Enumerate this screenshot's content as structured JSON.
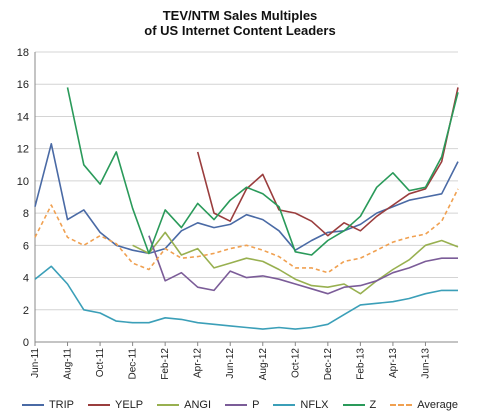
{
  "chart_data": {
    "type": "line",
    "title": "TEV/NTM Sales Multiples",
    "subtitle": "of US Internet Content Leaders",
    "ylim": [
      0,
      18
    ],
    "y_ticks": [
      "0",
      "2",
      "4",
      "6",
      "8",
      "10",
      "12",
      "14",
      "16",
      "18"
    ],
    "x_start": "Jun-11",
    "x_end": "Aug-13",
    "x_tick_labels": [
      "Jun-11",
      "Aug-11",
      "Oct-11",
      "Dec-11",
      "Feb-12",
      "Apr-12",
      "Jun-12",
      "Aug-12",
      "Oct-12",
      "Dec-12",
      "Feb-13",
      "Apr-13",
      "Jun-13"
    ],
    "grid": true,
    "legend_position": "bottom",
    "series": [
      {
        "name": "TRIP",
        "color": "#4a6aa5",
        "dash": false,
        "x": [
          "Jun-11",
          "Jul-11",
          "Aug-11",
          "Sep-11",
          "Oct-11",
          "Nov-11",
          "Dec-11",
          "Jan-12",
          "Feb-12",
          "Mar-12",
          "Apr-12",
          "May-12",
          "Jun-12",
          "Jul-12",
          "Aug-12",
          "Sep-12",
          "Oct-12",
          "Nov-12",
          "Dec-12",
          "Jan-13",
          "Feb-13",
          "Mar-13",
          "Apr-13",
          "May-13",
          "Jun-13",
          "Jul-13",
          "Aug-13"
        ],
        "values": [
          8.4,
          12.3,
          7.6,
          8.2,
          6.8,
          6.0,
          5.7,
          5.5,
          5.8,
          6.9,
          7.4,
          7.1,
          7.3,
          7.9,
          7.6,
          6.9,
          5.7,
          6.3,
          6.8,
          6.9,
          7.3,
          8.0,
          8.4,
          8.8,
          9.0,
          9.2,
          11.2
        ]
      },
      {
        "name": "YELP",
        "color": "#9a3d3d",
        "dash": false,
        "x": [
          "Apr-12",
          "May-12",
          "Jun-12",
          "Jul-12",
          "Aug-12",
          "Sep-12",
          "Oct-12",
          "Nov-12",
          "Dec-12",
          "Jan-13",
          "Feb-13",
          "Mar-13",
          "Apr-13",
          "May-13",
          "Jun-13",
          "Jul-13",
          "Aug-13"
        ],
        "values": [
          11.8,
          8.0,
          7.5,
          9.5,
          10.4,
          8.2,
          8.0,
          7.5,
          6.6,
          7.4,
          6.9,
          7.8,
          8.5,
          9.2,
          9.5,
          11.2,
          15.8
        ]
      },
      {
        "name": "ANGI",
        "color": "#98b050",
        "dash": false,
        "x": [
          "Dec-11",
          "Jan-12",
          "Feb-12",
          "Mar-12",
          "Apr-12",
          "May-12",
          "Jun-12",
          "Jul-12",
          "Aug-12",
          "Sep-12",
          "Oct-12",
          "Nov-12",
          "Dec-12",
          "Jan-13",
          "Feb-13",
          "Mar-13",
          "Apr-13",
          "May-13",
          "Jun-13",
          "Jul-13",
          "Aug-13"
        ],
        "values": [
          6.0,
          5.5,
          6.8,
          5.4,
          5.8,
          4.6,
          4.9,
          5.2,
          5.0,
          4.5,
          3.9,
          3.5,
          3.4,
          3.6,
          3.0,
          3.8,
          4.5,
          5.1,
          6.0,
          6.3,
          5.9
        ]
      },
      {
        "name": "P",
        "color": "#7b5c98",
        "dash": false,
        "x": [
          "Jan-12",
          "Feb-12",
          "Mar-12",
          "Apr-12",
          "May-12",
          "Jun-12",
          "Jul-12",
          "Aug-12",
          "Sep-12",
          "Oct-12",
          "Nov-12",
          "Dec-12",
          "Jan-13",
          "Feb-13",
          "Mar-13",
          "Apr-13",
          "May-13",
          "Jun-13",
          "Jul-13",
          "Aug-13"
        ],
        "values": [
          6.6,
          3.8,
          4.3,
          3.4,
          3.2,
          4.4,
          4.0,
          4.1,
          3.9,
          3.6,
          3.3,
          3.0,
          3.4,
          3.5,
          3.8,
          4.3,
          4.6,
          5.0,
          5.2,
          5.2
        ]
      },
      {
        "name": "NFLX",
        "color": "#3b9fb8",
        "dash": false,
        "x": [
          "Jun-11",
          "Jul-11",
          "Aug-11",
          "Sep-11",
          "Oct-11",
          "Nov-11",
          "Dec-11",
          "Jan-12",
          "Feb-12",
          "Mar-12",
          "Apr-12",
          "May-12",
          "Jun-12",
          "Jul-12",
          "Aug-12",
          "Sep-12",
          "Oct-12",
          "Nov-12",
          "Dec-12",
          "Jan-13",
          "Feb-13",
          "Mar-13",
          "Apr-13",
          "May-13",
          "Jun-13",
          "Jul-13",
          "Aug-13"
        ],
        "values": [
          3.9,
          4.7,
          3.6,
          2.0,
          1.8,
          1.3,
          1.2,
          1.2,
          1.5,
          1.4,
          1.2,
          1.1,
          1.0,
          0.9,
          0.8,
          0.9,
          0.8,
          0.9,
          1.1,
          1.7,
          2.3,
          2.4,
          2.5,
          2.7,
          3.0,
          3.2,
          3.2
        ]
      },
      {
        "name": "Z",
        "color": "#2a9a5a",
        "dash": false,
        "x": [
          "Aug-11",
          "Sep-11",
          "Oct-11",
          "Nov-11",
          "Dec-11",
          "Jan-12",
          "Feb-12",
          "Mar-12",
          "Apr-12",
          "May-12",
          "Jun-12",
          "Jul-12",
          "Aug-12",
          "Sep-12",
          "Oct-12",
          "Nov-12",
          "Dec-12",
          "Jan-13",
          "Feb-13",
          "Mar-13",
          "Apr-13",
          "May-13",
          "Jun-13",
          "Jul-13",
          "Aug-13"
        ],
        "values": [
          15.8,
          11.0,
          9.8,
          11.8,
          8.3,
          5.5,
          8.2,
          7.1,
          8.6,
          7.6,
          8.8,
          9.6,
          9.2,
          8.4,
          5.6,
          5.4,
          6.3,
          6.9,
          7.8,
          9.6,
          10.5,
          9.4,
          9.6,
          11.5,
          15.5
        ]
      },
      {
        "name": "Average",
        "color": "#f0a050",
        "dash": true,
        "x": [
          "Jun-11",
          "Jul-11",
          "Aug-11",
          "Sep-11",
          "Oct-11",
          "Nov-11",
          "Dec-11",
          "Jan-12",
          "Feb-12",
          "Mar-12",
          "Apr-12",
          "May-12",
          "Jun-12",
          "Jul-12",
          "Aug-12",
          "Sep-12",
          "Oct-12",
          "Nov-12",
          "Dec-12",
          "Jan-13",
          "Feb-13",
          "Mar-13",
          "Apr-13",
          "May-13",
          "Jun-13",
          "Jul-13",
          "Aug-13"
        ],
        "values": [
          6.5,
          8.5,
          6.5,
          6.0,
          6.6,
          6.1,
          4.9,
          4.5,
          5.8,
          5.2,
          5.3,
          5.5,
          5.8,
          6.0,
          5.7,
          5.3,
          4.6,
          4.6,
          4.3,
          5.0,
          5.2,
          5.7,
          6.2,
          6.5,
          6.7,
          7.5,
          9.5
        ]
      }
    ]
  }
}
